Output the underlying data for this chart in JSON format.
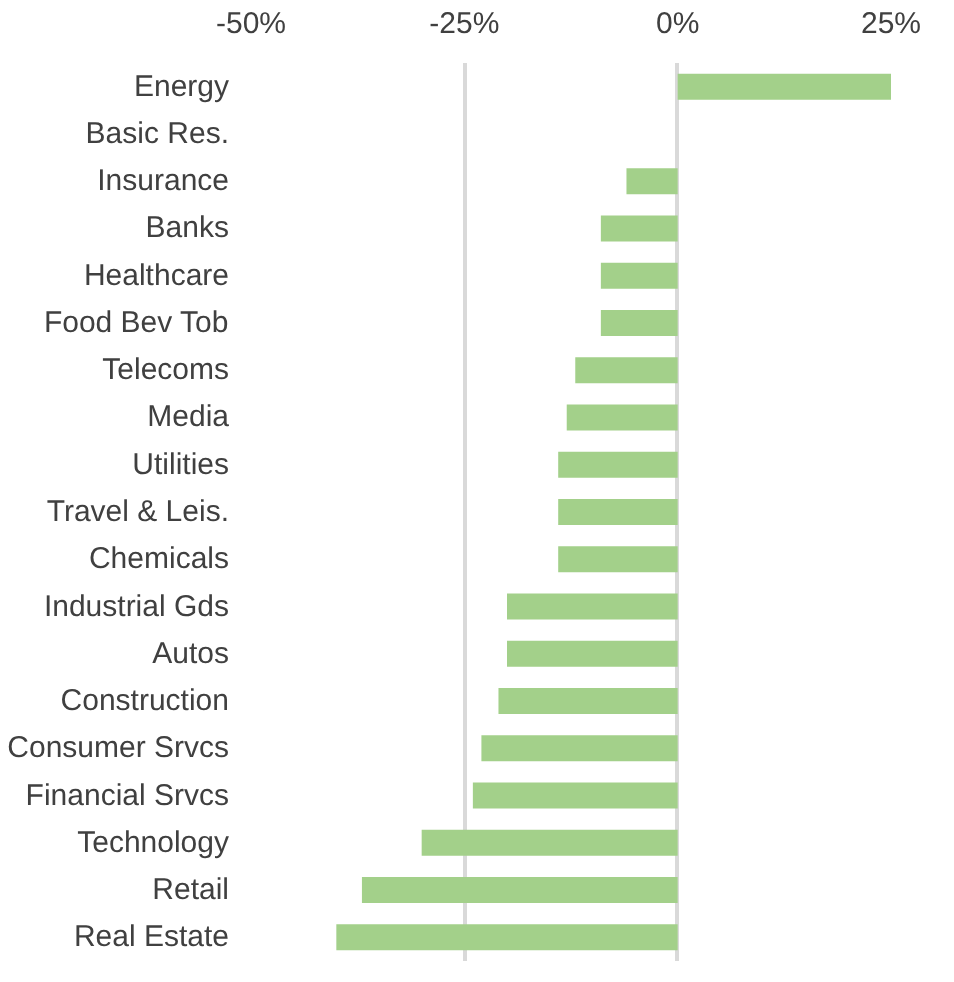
{
  "chart_data": {
    "type": "bar",
    "orientation": "horizontal",
    "categories": [
      "Energy",
      "Basic Res.",
      "Insurance",
      "Banks",
      "Healthcare",
      "Food Bev Tob",
      "Telecoms",
      "Media",
      "Utilities",
      "Travel & Leis.",
      "Chemicals",
      "Industrial Gds",
      "Autos",
      "Construction",
      "Consumer Srvcs",
      "Financial Srvcs",
      "Technology",
      "Retail",
      "Real Estate"
    ],
    "values": [
      25,
      0,
      -6,
      -9,
      -9,
      -9,
      -12,
      -13,
      -14,
      -14,
      -14,
      -20,
      -20,
      -21,
      -23,
      -24,
      -30,
      -37,
      -40
    ],
    "color": "#a3d08a",
    "xlim": [
      -50,
      25
    ],
    "xticks": [
      {
        "value": -50,
        "label": "-50%"
      },
      {
        "value": -25,
        "label": "-25%"
      },
      {
        "value": 0,
        "label": "0%"
      },
      {
        "value": 25,
        "label": "25%"
      }
    ],
    "grid": "x"
  }
}
